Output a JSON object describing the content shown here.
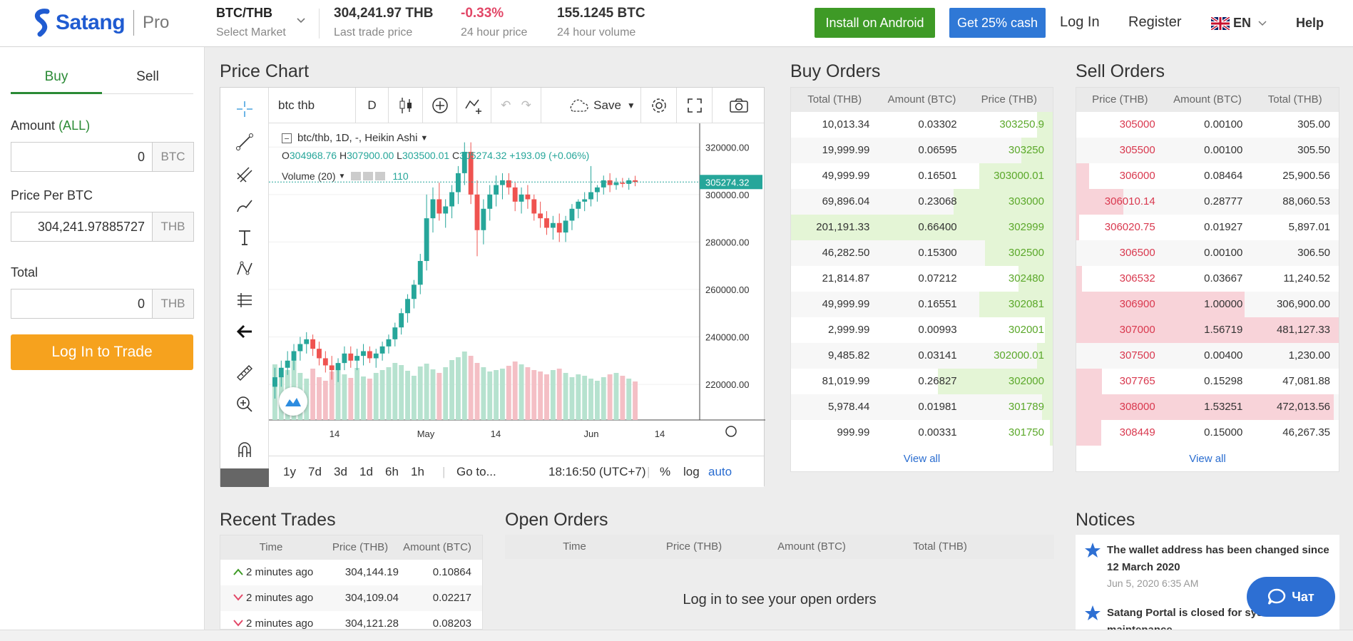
{
  "brand": {
    "name": "Satang",
    "product": "Pro"
  },
  "market": {
    "pair": "BTC/THB",
    "select_label": "Select Market"
  },
  "stats": [
    {
      "value": "304,241.97 THB",
      "label": "Last trade price"
    },
    {
      "value": "-0.33%",
      "label": "24 hour price"
    },
    {
      "value": "155.1245 BTC",
      "label": "24 hour volume"
    }
  ],
  "header_buttons": {
    "android": "Install on Android",
    "cash": "Get 25% cash",
    "login": "Log In",
    "register": "Register",
    "lang": "EN",
    "help": "Help"
  },
  "colors": {
    "green": "#3e9a26",
    "blue": "#2f78d6",
    "orange": "#f6a21e",
    "up": "#26a69a",
    "down": "#ef5350"
  },
  "trade_form": {
    "tabs": [
      "Buy",
      "Sell"
    ],
    "amount_label": "Amount",
    "amount_all": "(ALL)",
    "amount_value": "0",
    "amount_unit": "BTC",
    "price_label": "Price Per BTC",
    "price_value": "304,241.97885727",
    "price_unit": "THB",
    "total_label": "Total",
    "total_value": "0",
    "total_unit": "THB",
    "submit": "Log In to Trade"
  },
  "price_chart": {
    "title": "Price Chart",
    "symbol": "btc thb",
    "interval": "D",
    "save": "Save",
    "legend_title": "btc/thb, 1D, -, Heikin Ashi",
    "ohlc": {
      "o_label": "O",
      "o": "304968.76",
      "h_label": "H",
      "h": "307900.00",
      "l_label": "L",
      "l": "303500.01",
      "c_label": "C",
      "c": "305274.32",
      "chg": "+193.09 (+0.06%)"
    },
    "volume_label": "Volume (20)",
    "volume_value": "110",
    "y_ticks": [
      "320000.00",
      "300000.00",
      "280000.00",
      "260000.00",
      "240000.00",
      "220000.00"
    ],
    "current_price": "305274.32",
    "x_ticks": [
      "14",
      "May",
      "14",
      "Jun",
      "14"
    ],
    "ranges": [
      "1y",
      "7d",
      "3d",
      "1d",
      "6h",
      "1h"
    ],
    "goto": "Go to...",
    "time": "18:16:50 (UTC+7)",
    "pct": "%",
    "log": "log",
    "auto": "auto"
  },
  "chart_data": {
    "type": "candlestick",
    "ylim": [
      205000,
      330000
    ],
    "candles": [
      [
        219000,
        227000,
        214000,
        223000
      ],
      [
        223000,
        230000,
        219000,
        227000
      ],
      [
        227000,
        234000,
        224000,
        230000
      ],
      [
        230000,
        237000,
        226000,
        234000
      ],
      [
        234000,
        240000,
        230000,
        237000
      ],
      [
        237000,
        242000,
        233000,
        239000
      ],
      [
        239000,
        241000,
        232000,
        235000
      ],
      [
        235000,
        238000,
        228000,
        231000
      ],
      [
        231000,
        234000,
        225000,
        228000
      ],
      [
        228000,
        232000,
        222000,
        226000
      ],
      [
        226000,
        231000,
        221000,
        229000
      ],
      [
        229000,
        236000,
        226000,
        233000
      ],
      [
        233000,
        236000,
        227000,
        230000
      ],
      [
        230000,
        235000,
        226000,
        232000
      ],
      [
        232000,
        237000,
        228000,
        234000
      ],
      [
        234000,
        236000,
        229000,
        231000
      ],
      [
        231000,
        235000,
        227000,
        233000
      ],
      [
        233000,
        238000,
        230000,
        236000
      ],
      [
        236000,
        241000,
        233000,
        239000
      ],
      [
        239000,
        246000,
        236000,
        244000
      ],
      [
        244000,
        252000,
        241000,
        250000
      ],
      [
        250000,
        258000,
        246000,
        256000
      ],
      [
        256000,
        264000,
        252000,
        262000
      ],
      [
        262000,
        275000,
        258000,
        272000
      ],
      [
        272000,
        300000,
        268000,
        290000
      ],
      [
        290000,
        303000,
        284000,
        298000
      ],
      [
        298000,
        305000,
        289000,
        292000
      ],
      [
        292000,
        298000,
        286000,
        295000
      ],
      [
        295000,
        304000,
        290000,
        301000
      ],
      [
        301000,
        312000,
        296000,
        309000
      ],
      [
        309000,
        322000,
        304000,
        318000
      ],
      [
        318000,
        322000,
        296000,
        300000
      ],
      [
        300000,
        306000,
        274000,
        285000
      ],
      [
        285000,
        298000,
        279000,
        294000
      ],
      [
        294000,
        304000,
        289000,
        300000
      ],
      [
        300000,
        308000,
        295000,
        304000
      ],
      [
        304000,
        309000,
        298000,
        306000
      ],
      [
        306000,
        309000,
        300000,
        303000
      ],
      [
        303000,
        305000,
        293000,
        297000
      ],
      [
        297000,
        303000,
        292000,
        300000
      ],
      [
        300000,
        304000,
        294000,
        298000
      ],
      [
        298000,
        300000,
        289000,
        292000
      ],
      [
        292000,
        297000,
        286000,
        290000
      ],
      [
        290000,
        293000,
        283000,
        286000
      ],
      [
        286000,
        291000,
        281000,
        288000
      ],
      [
        288000,
        292000,
        280000,
        284000
      ],
      [
        284000,
        291000,
        280000,
        289000
      ],
      [
        289000,
        296000,
        285000,
        294000
      ],
      [
        294000,
        298000,
        290000,
        297000
      ],
      [
        297000,
        301000,
        293000,
        298000
      ],
      [
        298000,
        312000,
        295000,
        301000
      ],
      [
        301000,
        304000,
        297000,
        303000
      ],
      [
        303000,
        308000,
        300000,
        306000
      ],
      [
        306000,
        309000,
        301000,
        304000
      ],
      [
        304000,
        307000,
        302000,
        305000
      ],
      [
        305000,
        307000,
        303000,
        304500
      ],
      [
        304500,
        307000,
        302000,
        306000
      ],
      [
        306000,
        307900,
        303500,
        305274
      ]
    ],
    "volume": [
      78,
      62,
      70,
      85,
      66,
      58,
      72,
      60,
      55,
      68,
      70,
      64,
      59,
      73,
      61,
      58,
      66,
      70,
      74,
      80,
      77,
      69,
      62,
      75,
      79,
      71,
      66,
      74,
      84,
      88,
      96,
      90,
      80,
      74,
      68,
      70,
      72,
      76,
      82,
      78,
      74,
      70,
      68,
      64,
      70,
      72,
      66,
      60,
      64,
      62,
      58,
      55,
      60,
      64,
      66,
      62,
      58,
      54
    ],
    "xlabel": "",
    "ylabel": ""
  },
  "buy_orders": {
    "title": "Buy Orders",
    "headers": [
      "Total (THB)",
      "Amount (BTC)",
      "Price (THB)"
    ],
    "rows": [
      [
        "10,013.34",
        "0.03302",
        "303250.9",
        0.06
      ],
      [
        "19,999.99",
        "0.06595",
        "303250",
        0.12
      ],
      [
        "49,999.99",
        "0.16501",
        "303000.01",
        0.28
      ],
      [
        "69,896.04",
        "0.23068",
        "303000",
        0.38
      ],
      [
        "201,191.33",
        "0.66400",
        "302999",
        1.0
      ],
      [
        "46,282.50",
        "0.15300",
        "302500",
        0.26
      ],
      [
        "21,814.87",
        "0.07212",
        "302480",
        0.13
      ],
      [
        "49,999.99",
        "0.16551",
        "302081",
        0.28
      ],
      [
        "2,999.99",
        "0.00993",
        "302001",
        0.03
      ],
      [
        "9,485.82",
        "0.03141",
        "302000.01",
        0.06
      ],
      [
        "81,019.99",
        "0.26827",
        "302000",
        0.44
      ],
      [
        "5,978.44",
        "0.01981",
        "301789",
        0.04
      ],
      [
        "999.99",
        "0.00331",
        "301750",
        0.01
      ]
    ],
    "view_all": "View all"
  },
  "sell_orders": {
    "title": "Sell Orders",
    "headers": [
      "Price (THB)",
      "Amount (BTC)",
      "Total (THB)"
    ],
    "rows": [
      [
        "305000",
        "0.00100",
        "305.00",
        0.0
      ],
      [
        "305500",
        "0.00100",
        "305.50",
        0.0
      ],
      [
        "306000",
        "0.08464",
        "25,900.56",
        0.05
      ],
      [
        "306010.14",
        "0.28777",
        "88,060.53",
        0.18
      ],
      [
        "306020.75",
        "0.01927",
        "5,897.01",
        0.012
      ],
      [
        "306500",
        "0.00100",
        "306.50",
        0.0
      ],
      [
        "306532",
        "0.03667",
        "11,240.52",
        0.023
      ],
      [
        "306900",
        "1.00000",
        "306,900.00",
        0.64
      ],
      [
        "307000",
        "1.56719",
        "481,127.33",
        1.0
      ],
      [
        "307500",
        "0.00400",
        "1,230.00",
        0.0
      ],
      [
        "307765",
        "0.15298",
        "47,081.88",
        0.097
      ],
      [
        "308000",
        "1.53251",
        "472,013.56",
        0.98
      ],
      [
        "308449",
        "0.15000",
        "46,267.35",
        0.095
      ]
    ],
    "view_all": "View all"
  },
  "recent_trades": {
    "title": "Recent Trades",
    "headers": [
      "Time",
      "Price (THB)",
      "Amount (BTC)"
    ],
    "rows": [
      {
        "dir": "up",
        "time": "2 minutes ago",
        "price": "304,144.19",
        "amount": "0.10864"
      },
      {
        "dir": "down",
        "time": "2 minutes ago",
        "price": "304,109.04",
        "amount": "0.02217"
      },
      {
        "dir": "down",
        "time": "2 minutes ago",
        "price": "304,121.28",
        "amount": "0.08203"
      }
    ]
  },
  "open_orders": {
    "title": "Open Orders",
    "headers": [
      "Time",
      "Price (THB)",
      "Amount (BTC)",
      "Total (THB)"
    ],
    "empty": "Log in to see your open orders"
  },
  "notices": {
    "title": "Notices",
    "items": [
      {
        "title": "The wallet address has been changed since 12 March 2020",
        "date": "Jun 5, 2020 6:35 AM"
      },
      {
        "title": "Satang Portal is closed for system maintenance",
        "date": ""
      }
    ]
  },
  "chat": {
    "label": "Чат"
  }
}
